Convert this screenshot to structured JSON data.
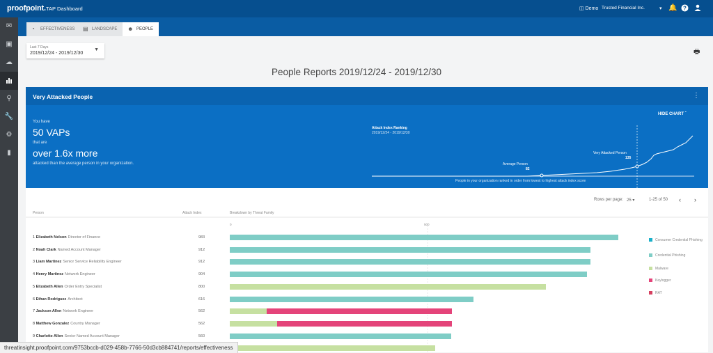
{
  "topbar": {
    "brand": "proofpoint.",
    "title": "TAP Dashboard",
    "demo": "Demo",
    "org": "Trusted Financial Inc.",
    "icons": [
      "chevron-down-icon",
      "bell-icon",
      "help-icon",
      "user-icon"
    ]
  },
  "sidebar": {
    "items": [
      "mail-icon",
      "id-card-icon",
      "cloud-icon",
      "bar-chart-icon",
      "search-icon",
      "wrench-icon",
      "gear-icon",
      "chat-icon"
    ]
  },
  "tabs": [
    {
      "label": "EFFECTIVENESS",
      "icon": "pie-icon"
    },
    {
      "label": "LANDSCAPE",
      "icon": "image-icon"
    },
    {
      "label": "PEOPLE",
      "icon": "people-icon",
      "active": true
    }
  ],
  "daterange": {
    "label": "Last 7 Days",
    "value": "2019/12/24 - 2019/12/30"
  },
  "page_title": "People Reports 2019/12/24 - 2019/12/30",
  "vap": {
    "title": "Very Attacked People",
    "hide_chart": "HIDE CHART",
    "you_have": "You have",
    "count": "50 VAPs",
    "that_are": "that are",
    "multiplier": "over 1.6x more",
    "desc": "attacked than the average person in your organization.",
    "chart": {
      "label": "Attack Index Ranking",
      "range": "2019/12/24 - 2019/12/30",
      "avg_label": "Average Person",
      "avg_value": "82",
      "vap_label": "Very Attacked Person",
      "vap_value": "135",
      "footer": "People in your organization ranked in order from lowest to highest attack index score"
    }
  },
  "pagination": {
    "rows_label": "Rows per page:",
    "rows_value": "25",
    "range": "1-25 of 50"
  },
  "columns": {
    "person": "Person",
    "index": "Attack Index",
    "breakdown": "Breakdown by Threat Family"
  },
  "axis": {
    "ticks": [
      "0",
      "500"
    ]
  },
  "colors": {
    "consumer": "#1ab0c9",
    "credential": "#7fcdc6",
    "malware": "#c6e0a1",
    "keylogger": "#e4447a",
    "rat": "#d64060"
  },
  "legend": [
    {
      "key": "consumer",
      "label": "Consumer Credential Phishing"
    },
    {
      "key": "credential",
      "label": "Credential Phishing"
    },
    {
      "key": "malware",
      "label": "Malware"
    },
    {
      "key": "keylogger",
      "label": "Keylogger"
    },
    {
      "key": "rat",
      "label": "RAT"
    }
  ],
  "rows": [
    {
      "rank": "1",
      "name": "Elizabeth Nelson",
      "role": "Director of Finance",
      "score": "983",
      "segments": [
        {
          "family": "credential",
          "value": 983
        }
      ]
    },
    {
      "rank": "2",
      "name": "Noah Clark",
      "role": "Named Account Manager",
      "score": "912",
      "segments": [
        {
          "family": "credential",
          "value": 912
        }
      ]
    },
    {
      "rank": "3",
      "name": "Liam Martinez",
      "role": "Senior Service Reliability Engineer",
      "score": "912",
      "segments": [
        {
          "family": "credential",
          "value": 912
        }
      ]
    },
    {
      "rank": "4",
      "name": "Henry Martinez",
      "role": "Network Engineer",
      "score": "904",
      "segments": [
        {
          "family": "credential",
          "value": 904
        }
      ]
    },
    {
      "rank": "5",
      "name": "Elizabeth Allen",
      "role": "Order Entry Specialist",
      "score": "800",
      "segments": [
        {
          "family": "malware",
          "value": 800
        }
      ]
    },
    {
      "rank": "6",
      "name": "Ethan Rodriguez",
      "role": "Architect",
      "score": "616",
      "segments": [
        {
          "family": "credential",
          "value": 616
        }
      ]
    },
    {
      "rank": "7",
      "name": "Jackson Allen",
      "role": "Network Engineer",
      "score": "562",
      "segments": [
        {
          "family": "malware",
          "value": 94
        },
        {
          "family": "keylogger",
          "value": 468
        }
      ]
    },
    {
      "rank": "8",
      "name": "Matthew Gonzalez",
      "role": "Country Manager",
      "score": "562",
      "segments": [
        {
          "family": "malware",
          "value": 119
        },
        {
          "family": "keylogger",
          "value": 443
        }
      ]
    },
    {
      "rank": "9",
      "name": "Charlotte Allen",
      "role": "Senior Named Account Manager",
      "score": "560",
      "segments": [
        {
          "family": "credential",
          "value": 560
        }
      ]
    },
    {
      "rank": "",
      "name": "",
      "role": "",
      "score": "",
      "segments": [
        {
          "family": "malware",
          "value": 520
        }
      ]
    }
  ],
  "status_url": "threatinsight.proofpoint.com/9753bccb-d029-458b-7766-50d3cb884741/reports/effectiveness"
}
